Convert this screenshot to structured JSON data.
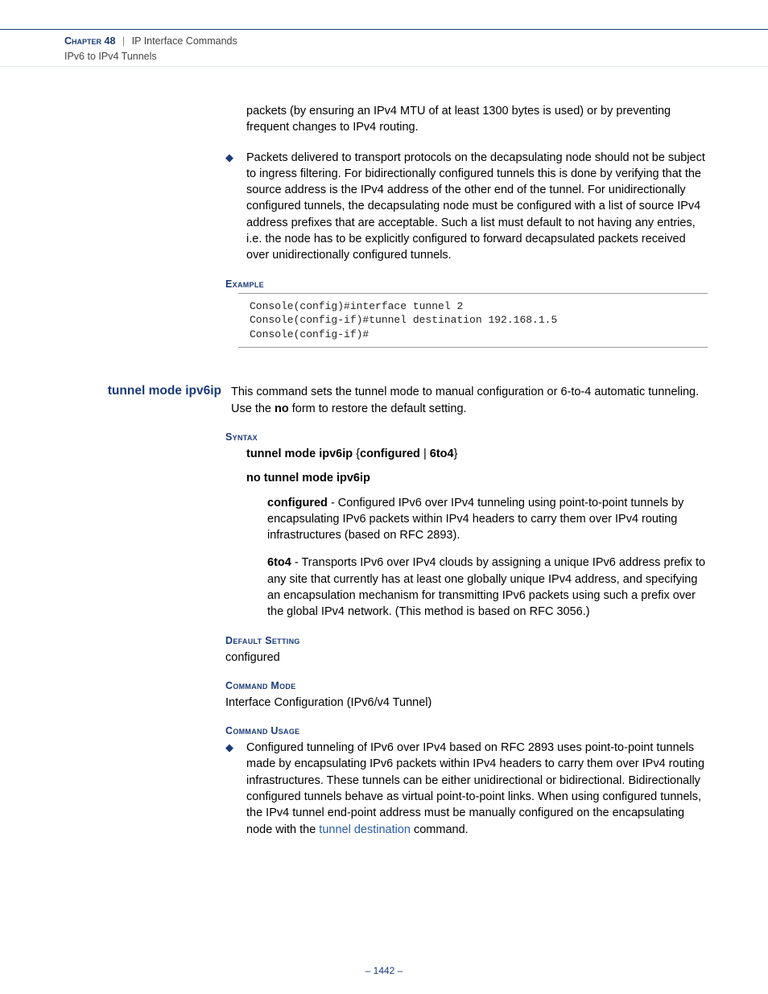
{
  "header": {
    "chapter_label": "Chapter",
    "chapter_number": "48",
    "section": "IP Interface Commands",
    "subsection": "IPv6 to IPv4 Tunnels"
  },
  "para1": "packets (by ensuring an IPv4 MTU of at least 1300 bytes is used) or by preventing frequent changes to IPv4 routing.",
  "bullet1": "Packets delivered to transport protocols on the decapsulating node should not be subject to ingress filtering. For bidirectionally configured tunnels this is done by verifying that the source address is the IPv4 address of the other end of the tunnel. For unidirectionally configured tunnels, the decapsulating node must be configured with a list of source IPv4 address prefixes that are acceptable. Such a list must default to not having any entries, i.e. the node has to be explicitly configured to forward decapsulated packets received over unidirectionally configured tunnels.",
  "labels": {
    "example": "Example",
    "syntax": "Syntax",
    "default_setting": "Default Setting",
    "command_mode": "Command Mode",
    "command_usage": "Command Usage"
  },
  "code1": "Console(config)#interface tunnel 2\nConsole(config-if)#tunnel destination 192.168.1.5\nConsole(config-if)#",
  "cmd": {
    "title": "tunnel mode ipv6ip",
    "desc_pre": "This command sets the tunnel mode to manual configuration or 6-to-4 automatic tunneling. Use the ",
    "desc_bold": "no",
    "desc_post": " form to restore the default setting."
  },
  "syntax": {
    "l1_p1": "tunnel mode ipv6ip ",
    "l1_brace_open": "{",
    "l1_p2": "configured",
    "l1_pipe": " | ",
    "l1_p3": "6to4",
    "l1_brace_close": "}",
    "l2": "no tunnel mode ipv6ip"
  },
  "params": {
    "p1_b": "configured",
    "p1_t": " - Configured IPv6 over IPv4 tunneling using point-to-point tunnels by encapsulating IPv6 packets within IPv4 headers to carry them over IPv4 routing infrastructures (based on RFC 2893).",
    "p2_b": "6to4",
    "p2_t": " - Transports IPv6 over IPv4 clouds by assigning a unique IPv6 address prefix to any site that currently has at least one globally unique IPv4 address, and specifying an encapsulation mechanism for transmitting IPv6 packets using such a prefix over the global IPv4 network. (This method is based on RFC 3056.)"
  },
  "default_setting_val": "configured",
  "command_mode_val": "Interface Configuration (IPv6/v4 Tunnel)",
  "usage1_pre": "Configured tunneling of IPv6 over IPv4 based on RFC 2893 uses point-to-point tunnels made by encapsulating IPv6 packets within IPv4 headers to carry them over IPv4 routing infrastructures. These tunnels can be either unidirectional or bidirectional. Bidirectionally configured tunnels behave as virtual point-to-point links. When using configured tunnels, the IPv4 tunnel end-point address must be manually configured on the encapsulating node with the ",
  "usage1_link": "tunnel destination",
  "usage1_post": " command.",
  "page_number": "–  1442  –",
  "colors": {
    "heading_blue": "#1a3a7a",
    "link_blue": "#2a5ca8",
    "text_black": "#000000",
    "divider_gray": "#999999"
  }
}
